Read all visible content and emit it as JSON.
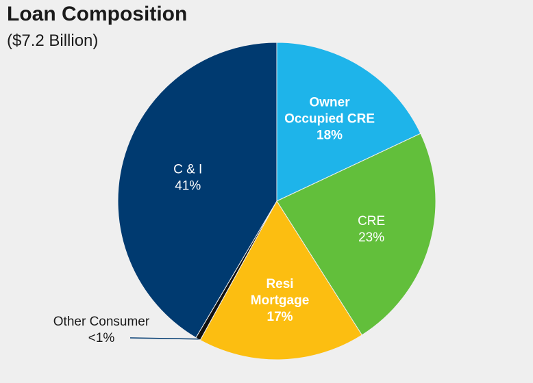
{
  "chart_data": {
    "type": "pie",
    "title": "Loan Composition",
    "subtitle": "($7.2 Billion)",
    "slices": [
      {
        "label_lines": [
          "Owner",
          "Occupied CRE"
        ],
        "percent_label": "18%",
        "value": 18,
        "color": "#1eb4ea",
        "text_color": "#ffffff"
      },
      {
        "label_lines": [
          "CRE"
        ],
        "percent_label": "23%",
        "value": 23,
        "color": "#62bf3b",
        "text_color": "#ffffff"
      },
      {
        "label_lines": [
          "Resi",
          "Mortgage"
        ],
        "percent_label": "17%",
        "value": 17,
        "color": "#fcbe11",
        "text_color": "#ffffff"
      },
      {
        "label_lines": [
          "Other Consumer"
        ],
        "percent_label": "<1%",
        "value": 0.5,
        "color": "#111111",
        "text_color": "#1a1a1a",
        "callout": true
      },
      {
        "label_lines": [
          "C & I"
        ],
        "percent_label": "41%",
        "value": 41.5,
        "color": "#003a70",
        "text_color": "#ffffff"
      }
    ]
  }
}
